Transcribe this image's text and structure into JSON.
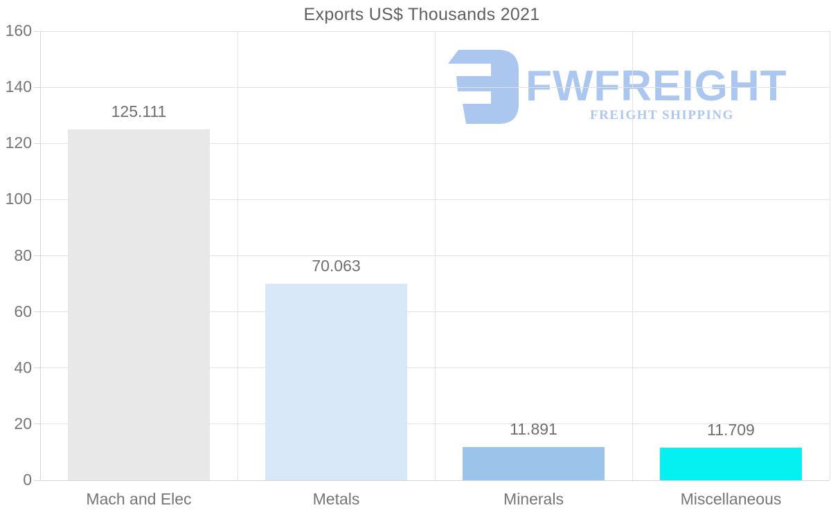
{
  "title": "Exports US$ Thousands 2021",
  "logo": {
    "brand": "FWFREIGHT",
    "tagline": "FREIGHT SHIPPING",
    "color": "#abc7f0",
    "glyph": "mirrored-e-freight-icon"
  },
  "chart_data": {
    "type": "bar",
    "title": "Exports US$ Thousands 2021",
    "categories": [
      "Mach and Elec",
      "Metals",
      "Minerals",
      "Miscellaneous"
    ],
    "values": [
      125.111,
      70.063,
      11.891,
      11.709
    ],
    "value_labels": [
      "125.111",
      "70.063",
      "11.891",
      "11.709"
    ],
    "bar_colors": [
      "#e8e8e8",
      "#d9e8f8",
      "#9cc3e9",
      "#05f1f1"
    ],
    "xlabel": "",
    "ylabel": "",
    "ylim": [
      0,
      160
    ],
    "yticks": [
      0,
      20,
      40,
      60,
      80,
      100,
      120,
      140,
      160
    ],
    "grid": true,
    "legend": false
  },
  "colors": {
    "gridline": "#e2e2e2",
    "axis": "#d6d6d6",
    "title_text": "#5f5f5f",
    "tick_text": "#757575",
    "value_text": "#6e6e6e",
    "background": "#ffffff"
  }
}
